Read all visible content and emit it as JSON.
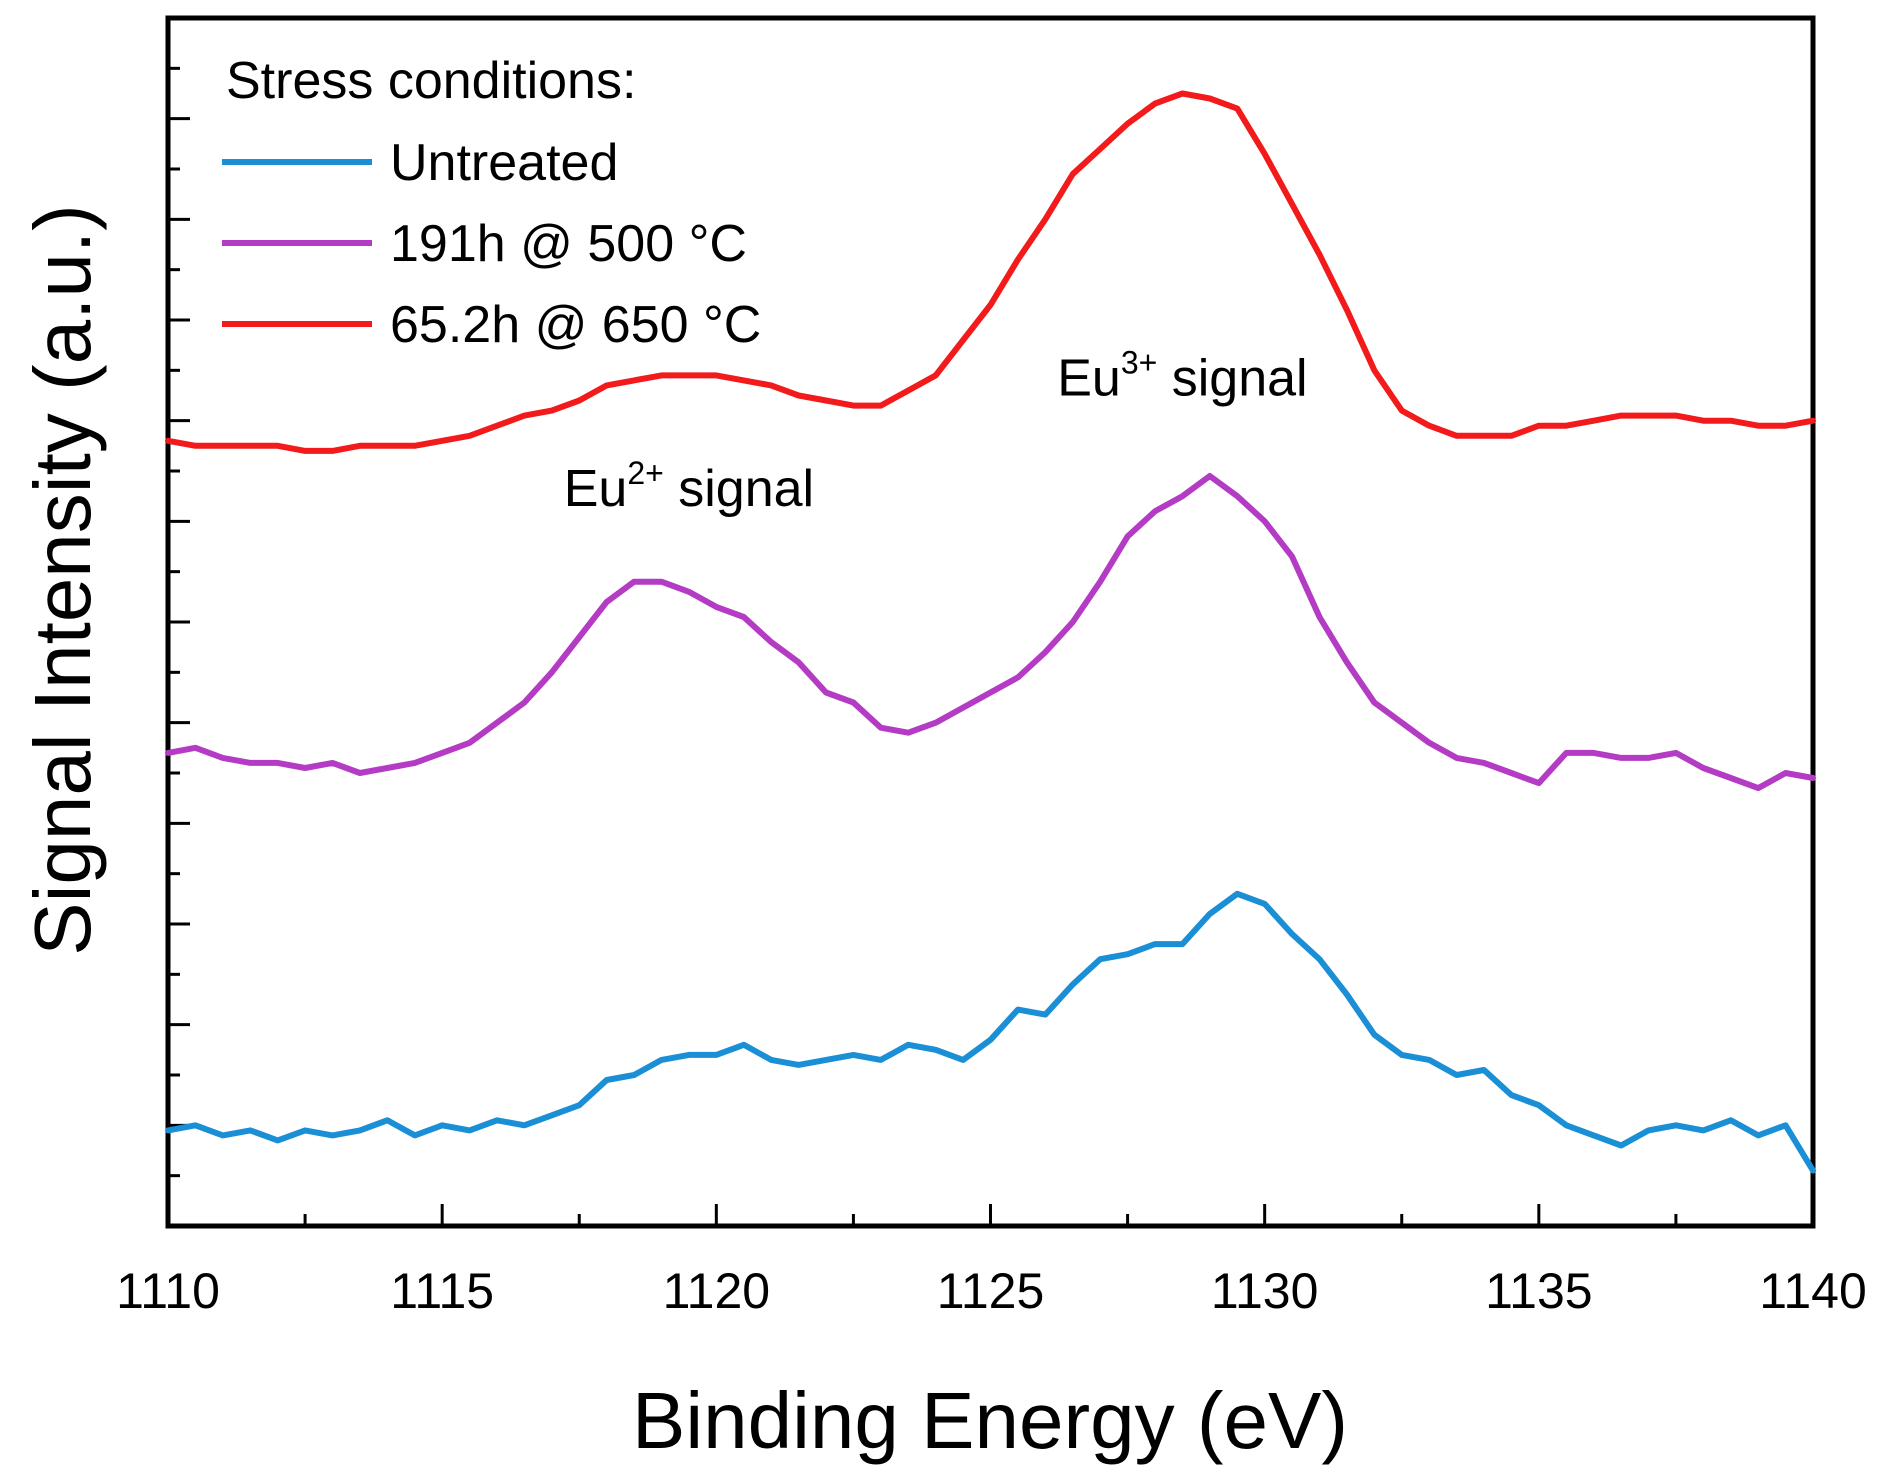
{
  "chart_data": {
    "type": "line",
    "title": "",
    "xlabel": "Binding Energy (eV)",
    "ylabel": "Signal Intensity (a.u.)",
    "xlim": [
      1110,
      1140
    ],
    "ylim": [
      0,
      24
    ],
    "x_ticks": [
      1110,
      1115,
      1120,
      1125,
      1130,
      1135,
      1140
    ],
    "x_tick_labels": [
      "1110",
      "1115",
      "1120",
      "1125",
      "1130",
      "1135",
      "1140"
    ],
    "y_tick_labels_shown": false,
    "grid": false,
    "legend": {
      "title": "Stress conditions:",
      "placement": "top-left"
    },
    "annotations": [
      {
        "base": "Eu",
        "sup": "2+",
        "rest": " signal",
        "x": 1119.5,
        "y": 14.3
      },
      {
        "base": "Eu",
        "sup": "3+",
        "rest": " signal",
        "x": 1128.5,
        "y": 16.5
      }
    ],
    "series": [
      {
        "name": "Untreated",
        "color": "#1a8fd6",
        "x": [
          1110.0,
          1110.5,
          1111.0,
          1111.5,
          1112.0,
          1112.5,
          1113.0,
          1113.5,
          1114.0,
          1114.5,
          1115.0,
          1115.5,
          1116.0,
          1116.5,
          1117.0,
          1117.5,
          1118.0,
          1118.5,
          1119.0,
          1119.5,
          1120.0,
          1120.5,
          1121.0,
          1121.5,
          1122.0,
          1122.5,
          1123.0,
          1123.5,
          1124.0,
          1124.5,
          1125.0,
          1125.5,
          1126.0,
          1126.5,
          1127.0,
          1127.5,
          1128.0,
          1128.5,
          1129.0,
          1129.5,
          1130.0,
          1130.5,
          1131.0,
          1131.5,
          1132.0,
          1132.5,
          1133.0,
          1133.5,
          1134.0,
          1134.5,
          1135.0,
          1135.5,
          1136.0,
          1136.5,
          1137.0,
          1137.5,
          1138.0,
          1138.5,
          1139.0,
          1139.5,
          1140.0
        ],
        "y": [
          1.9,
          2.0,
          1.8,
          1.9,
          1.7,
          1.9,
          1.8,
          1.9,
          2.1,
          1.8,
          2.0,
          1.9,
          2.1,
          2.0,
          2.2,
          2.4,
          2.9,
          3.0,
          3.3,
          3.4,
          3.4,
          3.6,
          3.3,
          3.2,
          3.3,
          3.4,
          3.3,
          3.6,
          3.5,
          3.3,
          3.7,
          4.3,
          4.2,
          4.8,
          5.3,
          5.4,
          5.6,
          5.6,
          6.2,
          6.6,
          6.4,
          5.8,
          5.3,
          4.6,
          3.8,
          3.4,
          3.3,
          3.0,
          3.1,
          2.6,
          2.4,
          2.0,
          1.8,
          1.6,
          1.9,
          2.0,
          1.9,
          2.1,
          1.8,
          2.0,
          1.1
        ]
      },
      {
        "name": "191h @ 500 °C",
        "color": "#b43cc4",
        "x": [
          1110.0,
          1110.5,
          1111.0,
          1111.5,
          1112.0,
          1112.5,
          1113.0,
          1113.5,
          1114.0,
          1114.5,
          1115.0,
          1115.5,
          1116.0,
          1116.5,
          1117.0,
          1117.5,
          1118.0,
          1118.5,
          1119.0,
          1119.5,
          1120.0,
          1120.5,
          1121.0,
          1121.5,
          1122.0,
          1122.5,
          1123.0,
          1123.5,
          1124.0,
          1124.5,
          1125.0,
          1125.5,
          1126.0,
          1126.5,
          1127.0,
          1127.5,
          1128.0,
          1128.5,
          1129.0,
          1129.5,
          1130.0,
          1130.5,
          1131.0,
          1131.5,
          1132.0,
          1132.5,
          1133.0,
          1133.5,
          1134.0,
          1134.5,
          1135.0,
          1135.5,
          1136.0,
          1136.5,
          1137.0,
          1137.5,
          1138.0,
          1138.5,
          1139.0,
          1139.5,
          1140.0
        ],
        "y": [
          9.4,
          9.5,
          9.3,
          9.2,
          9.2,
          9.1,
          9.2,
          9.0,
          9.1,
          9.2,
          9.4,
          9.6,
          10.0,
          10.4,
          11.0,
          11.7,
          12.4,
          12.8,
          12.8,
          12.6,
          12.3,
          12.1,
          11.6,
          11.2,
          10.6,
          10.4,
          9.9,
          9.8,
          10.0,
          10.3,
          10.6,
          10.9,
          11.4,
          12.0,
          12.8,
          13.7,
          14.2,
          14.5,
          14.9,
          14.5,
          14.0,
          13.3,
          12.1,
          11.2,
          10.4,
          10.0,
          9.6,
          9.3,
          9.2,
          9.0,
          8.8,
          9.4,
          9.4,
          9.3,
          9.3,
          9.4,
          9.1,
          8.9,
          8.7,
          9.0,
          8.9
        ]
      },
      {
        "name": "65.2h @ 650 °C",
        "color": "#f21a1a",
        "x": [
          1110.0,
          1110.5,
          1111.0,
          1111.5,
          1112.0,
          1112.5,
          1113.0,
          1113.5,
          1114.0,
          1114.5,
          1115.0,
          1115.5,
          1116.0,
          1116.5,
          1117.0,
          1117.5,
          1118.0,
          1118.5,
          1119.0,
          1119.5,
          1120.0,
          1120.5,
          1121.0,
          1121.5,
          1122.0,
          1122.5,
          1123.0,
          1123.5,
          1124.0,
          1124.5,
          1125.0,
          1125.5,
          1126.0,
          1126.5,
          1127.0,
          1127.5,
          1128.0,
          1128.5,
          1129.0,
          1129.5,
          1130.0,
          1130.5,
          1131.0,
          1131.5,
          1132.0,
          1132.5,
          1133.0,
          1133.5,
          1134.0,
          1134.5,
          1135.0,
          1135.5,
          1136.0,
          1136.5,
          1137.0,
          1137.5,
          1138.0,
          1138.5,
          1139.0,
          1139.5,
          1140.0
        ],
        "y": [
          15.6,
          15.5,
          15.5,
          15.5,
          15.5,
          15.4,
          15.4,
          15.5,
          15.5,
          15.5,
          15.6,
          15.7,
          15.9,
          16.1,
          16.2,
          16.4,
          16.7,
          16.8,
          16.9,
          16.9,
          16.9,
          16.8,
          16.7,
          16.5,
          16.4,
          16.3,
          16.3,
          16.6,
          16.9,
          17.6,
          18.3,
          19.2,
          20.0,
          20.9,
          21.4,
          21.9,
          22.3,
          22.5,
          22.4,
          22.2,
          21.3,
          20.3,
          19.3,
          18.2,
          17.0,
          16.2,
          15.9,
          15.7,
          15.7,
          15.7,
          15.9,
          15.9,
          16.0,
          16.1,
          16.1,
          16.1,
          16.0,
          16.0,
          15.9,
          15.9,
          16.0
        ]
      }
    ]
  }
}
